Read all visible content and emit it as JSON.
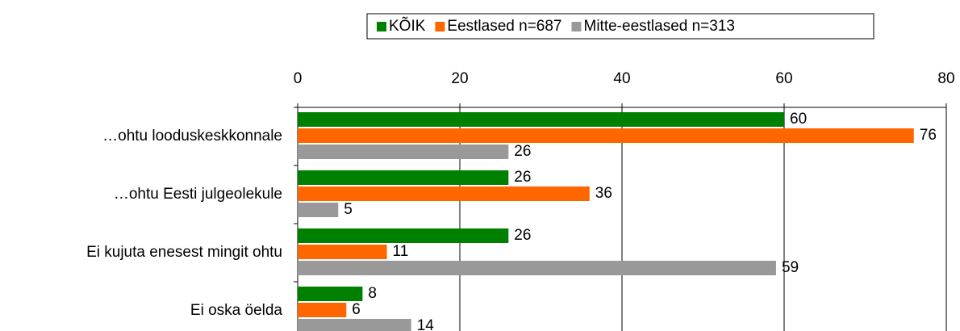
{
  "chart_data": {
    "type": "bar",
    "orientation": "horizontal",
    "categories": [
      "…ohtu looduskeskkonnale",
      "…ohtu Eesti julgeolekule",
      "Ei kujuta enesest mingit ohtu",
      "Ei oska öelda"
    ],
    "series": [
      {
        "name": "KÕIK",
        "color": "#008000",
        "values": [
          60,
          26,
          26,
          8
        ]
      },
      {
        "name": "Eestlased n=687",
        "color": "#ff6600",
        "values": [
          76,
          36,
          11,
          6
        ]
      },
      {
        "name": "Mitte-eestlased n=313",
        "color": "#999999",
        "values": [
          26,
          5,
          59,
          14
        ]
      }
    ],
    "xlim": [
      0,
      80
    ],
    "xticks": [
      0,
      20,
      40,
      60,
      80
    ],
    "grid": true,
    "legend": "top"
  }
}
